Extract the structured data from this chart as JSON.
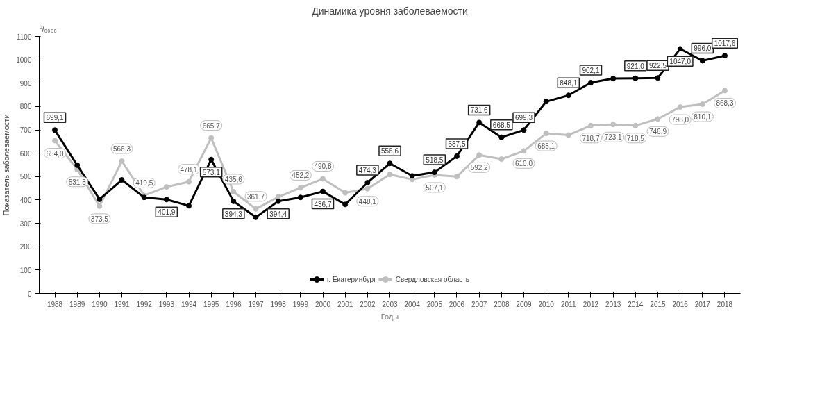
{
  "chart_data": {
    "type": "line",
    "title": "Динамика уровня заболеваемости",
    "xlabel": "Годы",
    "ylabel": "Показатель заболеваемости",
    "annotations": [
      "⁰/₀₀₀₀"
    ],
    "categories": [
      "1988",
      "1989",
      "1990",
      "1991",
      "1992",
      "1993",
      "1994",
      "1995",
      "1996",
      "1997",
      "1998",
      "1999",
      "2000",
      "2001",
      "2002",
      "2003",
      "2004",
      "2005",
      "2006",
      "2007",
      "2008",
      "2009",
      "2010",
      "2011",
      "2012",
      "2013",
      "2014",
      "2015",
      "2016",
      "2017",
      "2018"
    ],
    "ylim": [
      0,
      1100
    ],
    "yticks": [
      0,
      100,
      200,
      300,
      400,
      500,
      600,
      700,
      800,
      900,
      1000,
      1100
    ],
    "grid": false,
    "legend": "bottom",
    "marker": "circle",
    "line_style": "solid",
    "series": [
      {
        "name": "г. Екатеринбург",
        "color": "#000000",
        "values": [
          699.1,
          549,
          403,
          486,
          411,
          401.9,
          375,
          573.1,
          394.3,
          326,
          394.4,
          411,
          436.7,
          381,
          474.3,
          556.6,
          503,
          518.5,
          587.5,
          731.6,
          668.5,
          699.3,
          821,
          848.1,
          902.1,
          920,
          921.0,
          922.5,
          1047.0,
          996.0,
          1017.6
        ],
        "value_labels": [
          "699,1",
          null,
          null,
          null,
          null,
          "401,9",
          null,
          "573,1",
          "394,3",
          null,
          "394,4",
          null,
          "436,7",
          null,
          "474,3",
          "556,6",
          null,
          "518,5",
          "587,5",
          "731,6",
          "668,5",
          "699,3",
          null,
          "848,1",
          "902,1",
          null,
          "921,0",
          "922,5",
          "1047,0",
          "996,0",
          "1017,6"
        ]
      },
      {
        "name": "Свердловская область",
        "color": "#bfbfbf",
        "values": [
          654.0,
          531.5,
          373.5,
          566.3,
          419.5,
          456,
          478.1,
          665.7,
          435.6,
          361.7,
          413,
          452.2,
          490.8,
          431,
          448.1,
          509,
          488,
          507.1,
          500,
          592.2,
          575,
          610.0,
          685.1,
          678,
          718.7,
          723.1,
          718.5,
          746.9,
          798.0,
          810.1,
          868.3
        ],
        "value_labels": [
          "654,0",
          "531,5",
          "373,5",
          "566,3",
          "419,5",
          null,
          "478,1",
          "665,7",
          "435,6",
          "361,7",
          null,
          "452,2",
          "490,8",
          null,
          "448,1",
          null,
          null,
          "507,1",
          null,
          "592,2",
          null,
          "610,0",
          "685,1",
          null,
          "718,7",
          "723,1",
          "718,5",
          "746,9",
          "798,0",
          "810,1",
          "868,3"
        ]
      }
    ]
  }
}
